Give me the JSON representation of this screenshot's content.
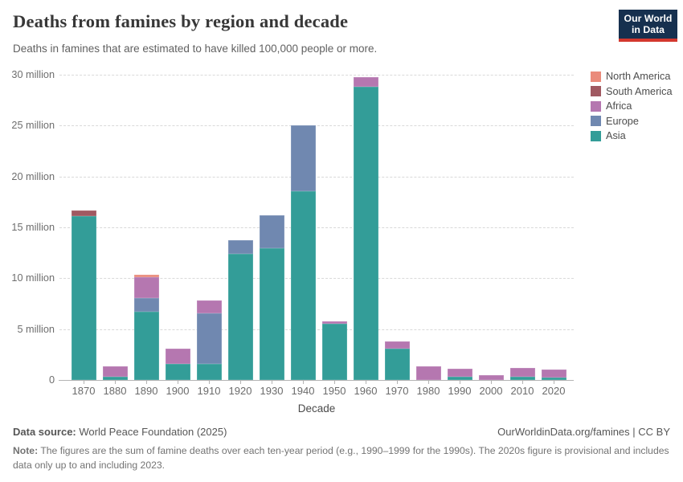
{
  "header": {
    "title": "Deaths from famines by region and decade",
    "subtitle": "Deaths in famines that are estimated to have killed 100,000 people or more.",
    "logo": {
      "line1": "Our World",
      "line2": "in Data",
      "bg": "#16304f",
      "accent": "#d3382e"
    }
  },
  "chart_data": {
    "type": "bar",
    "stacked": true,
    "title": "Deaths from famines by region and decade",
    "xlabel": "Decade",
    "ylabel": "",
    "ylim": [
      0,
      30
    ],
    "grid": "dashed-horizontal",
    "legend_position": "right",
    "yticks": [
      0,
      5,
      10,
      15,
      20,
      25,
      30
    ],
    "ytick_labels": [
      "0",
      "5 million",
      "10 million",
      "15 million",
      "20 million",
      "25 million",
      "30 million"
    ],
    "categories": [
      "1870",
      "1880",
      "1890",
      "1900",
      "1910",
      "1920",
      "1930",
      "1940",
      "1950",
      "1960",
      "1970",
      "1980",
      "1990",
      "2000",
      "2010",
      "2020"
    ],
    "unit": "million deaths",
    "series": [
      {
        "name": "Asia",
        "color": "#339d98",
        "values": [
          16.1,
          0.3,
          6.7,
          1.6,
          1.6,
          12.4,
          12.95,
          18.55,
          5.5,
          28.8,
          3.1,
          0,
          0.35,
          0,
          0.35,
          0.2
        ]
      },
      {
        "name": "Europe",
        "color": "#7088b0",
        "values": [
          0,
          0,
          1.35,
          0,
          4.95,
          1.35,
          3.25,
          6.45,
          0,
          0,
          0,
          0,
          0,
          0,
          0,
          0
        ]
      },
      {
        "name": "Africa",
        "color": "#b577b0",
        "values": [
          0,
          1.05,
          2.05,
          1.5,
          1.3,
          0,
          0,
          0,
          0.25,
          0.95,
          0.7,
          1.35,
          0.75,
          0.45,
          0.85,
          0.8
        ]
      },
      {
        "name": "South America",
        "color": "#a05961",
        "values": [
          0.55,
          0,
          0,
          0,
          0,
          0,
          0,
          0,
          0,
          0,
          0,
          0,
          0,
          0,
          0,
          0
        ]
      },
      {
        "name": "North America",
        "color": "#ea8b7b",
        "values": [
          0,
          0,
          0.25,
          0,
          0,
          0,
          0,
          0,
          0,
          0,
          0,
          0,
          0,
          0,
          0,
          0
        ]
      }
    ],
    "legend": [
      "North America",
      "South America",
      "Africa",
      "Europe",
      "Asia"
    ]
  },
  "footer": {
    "source_label": "Data source:",
    "source_value": " World Peace Foundation (2025)",
    "link": "OurWorldinData.org/famines | CC BY",
    "note_label": "Note:",
    "note_value": " The figures are the sum of famine deaths over each ten-year period (e.g., 1990–1999 for the 1990s). The 2020s figure is provisional and includes data only up to and including 2023."
  }
}
